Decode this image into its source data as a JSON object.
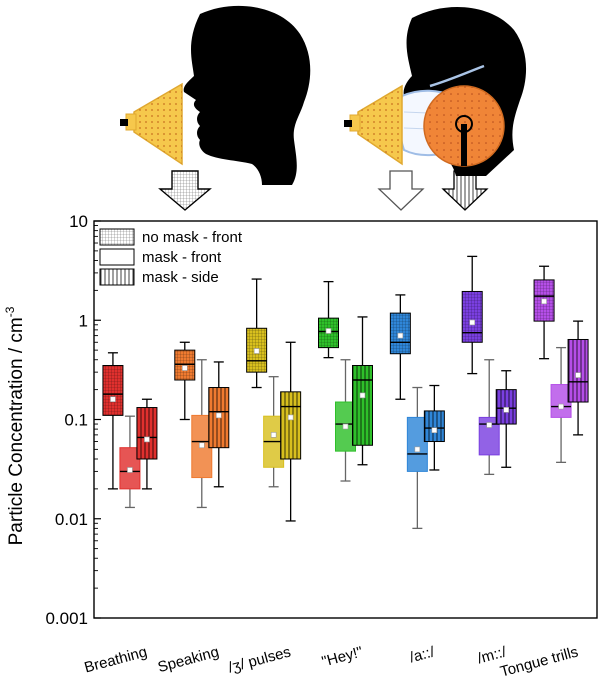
{
  "chart_data": {
    "type": "box",
    "ylabel": "Particle Concentration / cm",
    "ylabel_superscript": "-3",
    "yscale": "log",
    "ylim": [
      0.001,
      10
    ],
    "yticks": [
      "0.001",
      "0.01",
      "0.1",
      "1",
      "10"
    ],
    "categories": [
      "Breathing",
      "Speaking",
      "/ʒ/ pulses",
      "\"Hey!\"",
      "/a::/",
      "/m::/",
      "Tongue trills"
    ],
    "colors": [
      "#e0302e",
      "#ef7a30",
      "#d8bf1e",
      "#2ec02a",
      "#2f86d8",
      "#7a3fe0",
      "#b54ee8"
    ],
    "legend": [
      {
        "name": "no mask - front",
        "pattern": "grid"
      },
      {
        "name": "mask - front",
        "pattern": "none"
      },
      {
        "name": "mask - side",
        "pattern": "vertical"
      }
    ],
    "legend_position": "top-left",
    "series": [
      {
        "name": "no mask - front",
        "pattern": "grid",
        "boxes": [
          {
            "min": 0.02,
            "q1": 0.11,
            "median": 0.18,
            "mean": 0.16,
            "q3": 0.35,
            "max": 0.47
          },
          {
            "min": 0.1,
            "q1": 0.25,
            "median": 0.36,
            "mean": 0.33,
            "q3": 0.5,
            "max": 0.6
          },
          {
            "min": 0.21,
            "q1": 0.3,
            "median": 0.39,
            "mean": 0.49,
            "q3": 0.83,
            "max": 2.6
          },
          {
            "min": 0.42,
            "q1": 0.53,
            "median": 0.77,
            "mean": 0.78,
            "q3": 1.05,
            "max": 2.45
          },
          {
            "min": 0.16,
            "q1": 0.46,
            "median": 0.6,
            "mean": 0.7,
            "q3": 1.18,
            "max": 1.8
          },
          {
            "min": 0.29,
            "q1": 0.6,
            "median": 0.75,
            "mean": 0.95,
            "q3": 1.95,
            "max": 4.4
          },
          {
            "min": 0.41,
            "q1": 0.98,
            "median": 1.75,
            "mean": 1.55,
            "q3": 2.55,
            "max": 3.5
          }
        ]
      },
      {
        "name": "mask - front",
        "pattern": "none",
        "boxes": [
          {
            "min": 0.013,
            "q1": 0.02,
            "median": 0.03,
            "mean": 0.031,
            "q3": 0.052,
            "max": 0.108
          },
          {
            "min": 0.013,
            "q1": 0.026,
            "median": 0.06,
            "mean": 0.055,
            "q3": 0.11,
            "max": 0.4
          },
          {
            "min": 0.021,
            "q1": 0.033,
            "median": 0.06,
            "mean": 0.07,
            "q3": 0.108,
            "max": 0.27
          },
          {
            "min": 0.024,
            "q1": 0.048,
            "median": 0.09,
            "mean": 0.085,
            "q3": 0.15,
            "max": 0.4
          },
          {
            "min": 0.008,
            "q1": 0.03,
            "median": 0.045,
            "mean": 0.05,
            "q3": 0.105,
            "max": 0.21
          },
          {
            "min": 0.028,
            "q1": 0.044,
            "median": 0.09,
            "mean": 0.088,
            "q3": 0.105,
            "max": 0.4
          },
          {
            "min": 0.037,
            "q1": 0.105,
            "median": 0.135,
            "mean": 0.135,
            "q3": 0.225,
            "max": 0.53
          }
        ]
      },
      {
        "name": "mask - side",
        "pattern": "vertical",
        "boxes": [
          {
            "min": 0.02,
            "q1": 0.04,
            "median": 0.066,
            "mean": 0.063,
            "q3": 0.132,
            "max": 0.16
          },
          {
            "min": 0.021,
            "q1": 0.052,
            "median": 0.12,
            "mean": 0.11,
            "q3": 0.21,
            "max": 0.38
          },
          {
            "min": 0.0095,
            "q1": 0.04,
            "median": 0.135,
            "mean": 0.105,
            "q3": 0.19,
            "max": 0.6
          },
          {
            "min": 0.035,
            "q1": 0.055,
            "median": 0.25,
            "mean": 0.175,
            "q3": 0.35,
            "max": 1.08
          },
          {
            "min": 0.031,
            "q1": 0.06,
            "median": 0.082,
            "mean": 0.078,
            "q3": 0.122,
            "max": 0.22
          },
          {
            "min": 0.033,
            "q1": 0.09,
            "median": 0.13,
            "mean": 0.125,
            "q3": 0.2,
            "max": 0.31
          },
          {
            "min": 0.07,
            "q1": 0.15,
            "median": 0.24,
            "mean": 0.28,
            "q3": 0.64,
            "max": 0.98
          }
        ]
      }
    ]
  }
}
